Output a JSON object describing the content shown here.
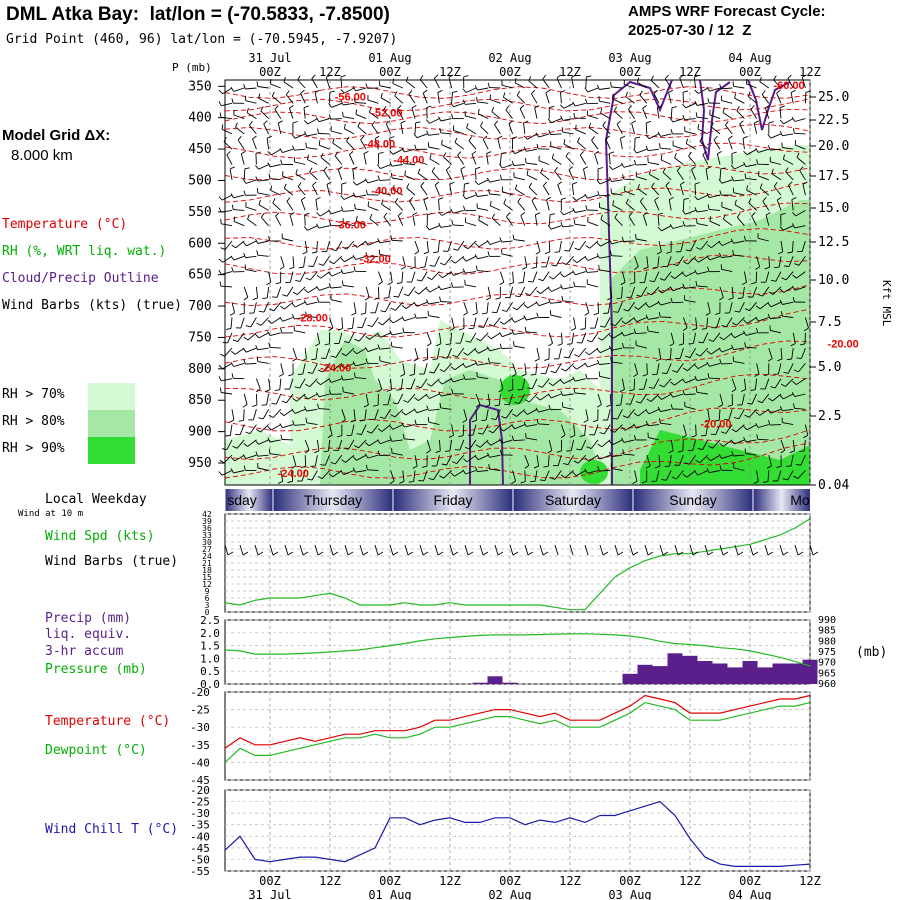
{
  "header": {
    "title": "DML Atka Bay:  lat/lon = (-70.5833, -7.8500)",
    "grid_point": "Grid Point (460, 96) lat/lon = (-70.5945, -7.9207)",
    "cycle_title": "AMPS WRF Forecast Cycle:",
    "cycle_value": "2025-07-30 / 12  Z"
  },
  "side": {
    "model_grid_line1": "Model Grid ΔX:",
    "model_grid_line2": "8.000 km",
    "temperature": "Temperature (°C)",
    "rh": "RH (%, WRT liq. wat.)",
    "cloud": "Cloud/Precip Outline",
    "wind_barbs": "Wind Barbs (kts) (true)",
    "rh70": "RH > 70%",
    "rh80": "RH > 80%",
    "rh90": "RH > 90%",
    "local_weekday": "Local Weekday",
    "wind_at_10m": "Wind at 10 m",
    "wind_spd": "Wind Spd (kts)",
    "wind_barbs2": "Wind Barbs (true)",
    "precip1": "Precip (mm)",
    "precip2": "liq. equiv.",
    "precip3": "3-hr accum",
    "pressure": "Pressure (mb)",
    "temp2": "Temperature (°C)",
    "dewpoint": "Dewpoint (°C)",
    "windchill": "Wind Chill T (°C)"
  },
  "colors": {
    "temperature": "#e00000",
    "rh_label": "#00b000",
    "cloud": "#5a1a8a",
    "rh70": "#d3fad3",
    "rh80": "#a5e8a5",
    "rh90": "#33dd33",
    "precip": "#5a1f8a",
    "pressure": "#22bb22",
    "windchill": "#1a1aaa",
    "contour_label": "#ee0000"
  },
  "chart_data": {
    "time_axis": {
      "tick_labels": [
        "00Z",
        "12Z",
        "00Z",
        "12Z",
        "00Z",
        "12Z",
        "00Z",
        "12Z",
        "00Z",
        "12Z"
      ],
      "date_labels": [
        "31 Jul",
        "01 Aug",
        "02 Aug",
        "03 Aug",
        "04 Aug"
      ],
      "weekdays": [
        "sday",
        "Thursday",
        "Friday",
        "Saturday",
        "Sunday",
        "Mo"
      ]
    },
    "profile": {
      "type": "contour",
      "ylabel": "P (mb)",
      "y_ticks": [
        "350",
        "400",
        "450",
        "500",
        "550",
        "600",
        "650",
        "700",
        "750",
        "800",
        "850",
        "900",
        "950"
      ],
      "right_label": "Kft MSL",
      "right_ticks": [
        "25.0",
        "22.5",
        "20.0",
        "17.5",
        "15.0",
        "12.5",
        "10.0",
        "7.5",
        "5.0",
        "2.5",
        "0.04"
      ],
      "temp_contour_labels": [
        {
          "text": "-60.00",
          "t": 37.5,
          "p": 348
        },
        {
          "text": "-56.00",
          "t": 7.5,
          "p": 366
        },
        {
          "text": "-52.00",
          "t": 10.0,
          "p": 392
        },
        {
          "text": "-48.00",
          "t": 9.5,
          "p": 441
        },
        {
          "text": "-44.00",
          "t": 11.5,
          "p": 467
        },
        {
          "text": "-40.00",
          "t": 10.0,
          "p": 516
        },
        {
          "text": "-36.00",
          "t": 7.5,
          "p": 570
        },
        {
          "text": "-32.00",
          "t": 9.2,
          "p": 624
        },
        {
          "text": "-28.00",
          "t": 4.9,
          "p": 718
        },
        {
          "text": "-24.00",
          "t": 6.5,
          "p": 798
        },
        {
          "text": "-20.00",
          "t": 32.5,
          "p": 887
        },
        {
          "text": "-20.00",
          "t": 41.2,
          "p": 760
        },
        {
          "text": "-24.00",
          "t": 3.6,
          "p": 966
        }
      ]
    },
    "wind_speed": {
      "type": "line",
      "y_ticks": [
        "42",
        "39",
        "36",
        "33",
        "30",
        "27",
        "24",
        "21",
        "18",
        "15",
        "12",
        "9",
        "6",
        "3",
        "0"
      ],
      "ylim": [
        0,
        42
      ],
      "values": [
        4,
        3,
        5,
        6,
        6,
        6,
        7,
        8,
        6,
        3,
        3,
        3,
        4,
        3,
        3,
        4,
        3,
        3,
        3,
        3,
        3,
        3,
        2,
        1,
        1,
        8,
        15,
        19,
        22,
        24,
        25,
        25,
        26,
        27,
        28,
        29,
        31,
        33,
        36,
        40
      ]
    },
    "precip_pressure": {
      "type": "bar+line",
      "left_ticks": [
        "2.5",
        "2.0",
        "1.5",
        "1.0",
        "0.5",
        "0.0"
      ],
      "right_ticks": [
        "990",
        "985",
        "980",
        "975",
        "970",
        "965",
        "960"
      ],
      "right_label": "(mb)",
      "precip_ylim": [
        0,
        2.5
      ],
      "precip": [
        0,
        0,
        0,
        0,
        0,
        0,
        0,
        0,
        0,
        0,
        0,
        0,
        0,
        0,
        0,
        0,
        0,
        0.05,
        0.3,
        0.05,
        0,
        0,
        0,
        0,
        0,
        0,
        0,
        0.4,
        0.75,
        0.7,
        1.2,
        1.1,
        0.9,
        0.8,
        0.65,
        0.9,
        0.65,
        0.8,
        0.8,
        0.95
      ],
      "pressure_ylim": [
        960,
        990
      ],
      "pressure": [
        976,
        975.5,
        974,
        974,
        974,
        974.3,
        974.6,
        975,
        975.5,
        976,
        977,
        978,
        979,
        980.2,
        981.2,
        981.8,
        982.3,
        982.8,
        983,
        983,
        983,
        983.2,
        983.4,
        983.5,
        983.6,
        983.3,
        983,
        982.5,
        981.5,
        980,
        979,
        978.5,
        978,
        977,
        976.5,
        975.5,
        974,
        972.5,
        970.5,
        968.5
      ]
    },
    "temperature": {
      "type": "line",
      "y_ticks": [
        "-20",
        "-25",
        "-30",
        "-35",
        "-40",
        "-45"
      ],
      "ylim": [
        -45,
        -20
      ],
      "series": [
        {
          "name": "Temperature",
          "values": [
            -36,
            -33,
            -35,
            -35,
            -34,
            -33,
            -34,
            -33,
            -32,
            -32,
            -31,
            -31,
            -31,
            -30,
            -28,
            -28,
            -27,
            -26,
            -25,
            -25,
            -26,
            -27,
            -26,
            -28,
            -28,
            -28,
            -26,
            -24,
            -21,
            -22,
            -23,
            -26,
            -26,
            -26,
            -25,
            -24,
            -23,
            -22,
            -22,
            -21
          ]
        },
        {
          "name": "Dewpoint",
          "values": [
            -40,
            -36,
            -38,
            -38,
            -37,
            -36,
            -35,
            -34,
            -33,
            -33,
            -32,
            -33,
            -33,
            -32,
            -30,
            -30,
            -29,
            -28,
            -27,
            -27,
            -28,
            -29,
            -28,
            -30,
            -30,
            -30,
            -28,
            -26,
            -23,
            -24,
            -25,
            -28,
            -28,
            -28,
            -27,
            -26,
            -25,
            -24,
            -24,
            -23
          ]
        }
      ]
    },
    "wind_chill": {
      "type": "line",
      "y_ticks": [
        "-20",
        "-25",
        "-30",
        "-35",
        "-40",
        "-45",
        "-50",
        "-55"
      ],
      "ylim": [
        -55,
        -20
      ],
      "values": [
        -46,
        -40,
        -50,
        -51,
        -50,
        -49,
        -49,
        -50,
        -51,
        -48,
        -45,
        -32,
        -32,
        -35,
        -33,
        -32,
        -34,
        -34,
        -32,
        -32,
        -35,
        -33,
        -34,
        -32,
        -34,
        -31,
        -31,
        -29,
        -27,
        -25,
        -31,
        -41,
        -49,
        -52,
        -53,
        -53,
        -53,
        -53,
        -52.5,
        -52
      ]
    }
  }
}
